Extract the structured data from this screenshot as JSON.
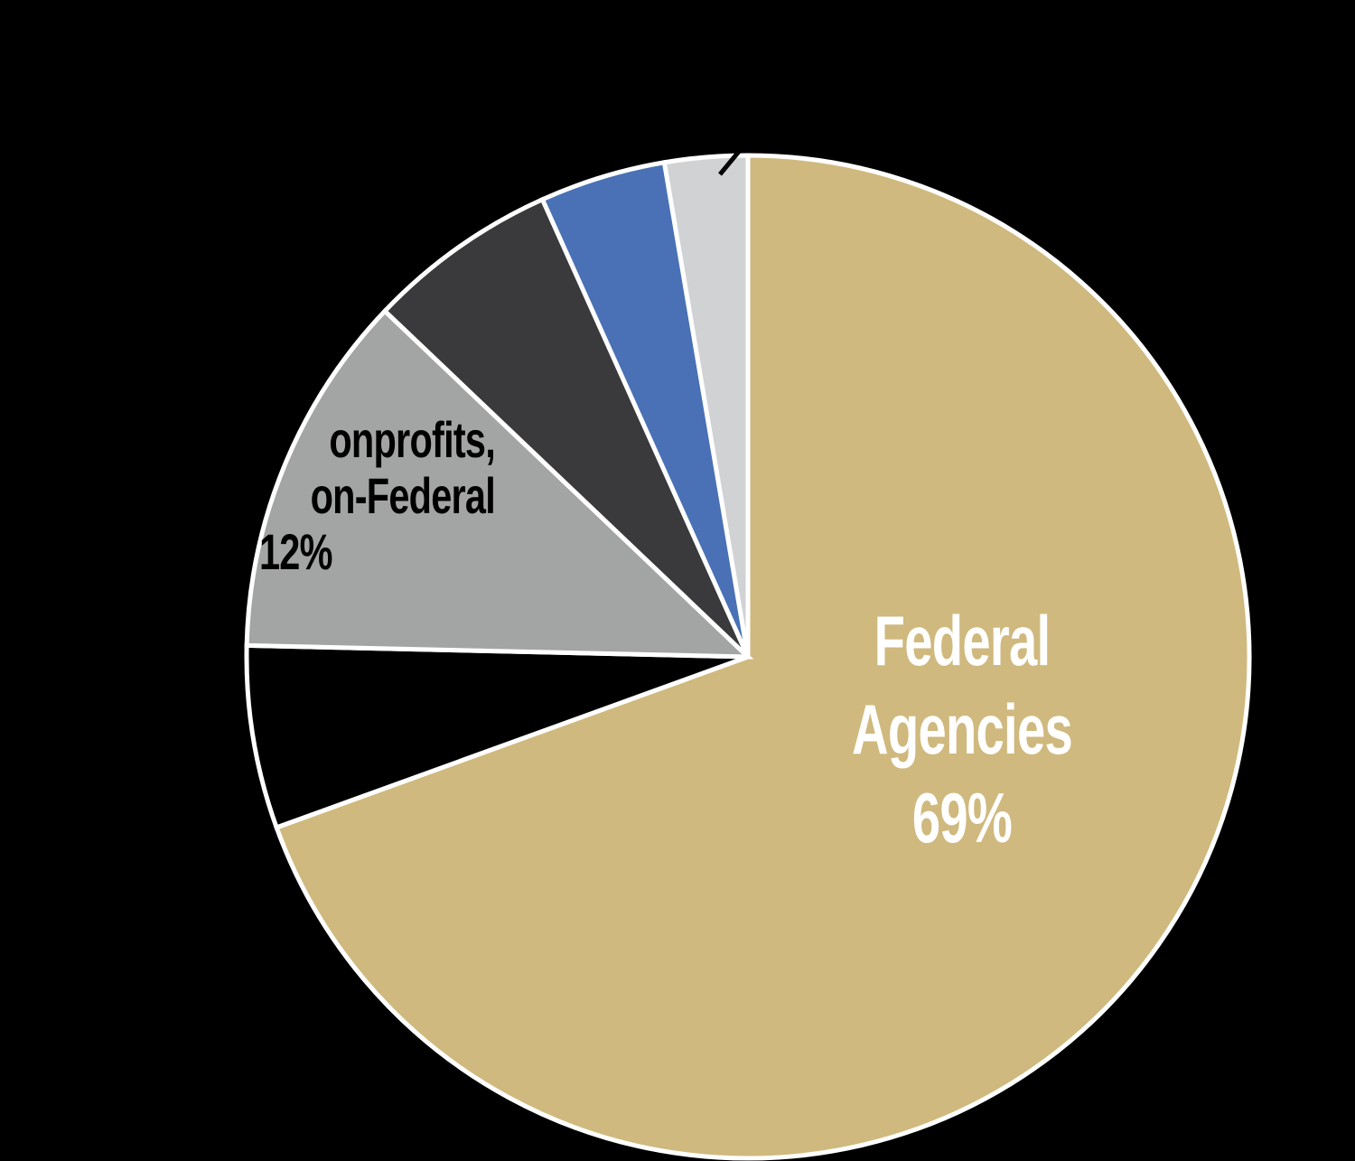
{
  "chart_data": {
    "type": "pie",
    "title": "",
    "start_angle_deg": 0,
    "direction": "clockwise",
    "slice_outline_color": "#ffffff",
    "background": "#000000",
    "slices": [
      {
        "key": "federal",
        "label": "Federal Agencies",
        "value": 69,
        "color": "#d0b97e",
        "label_lines": [
          "Federal",
          "Agencies",
          "69%"
        ],
        "label_color": "#ffffff"
      },
      {
        "key": "black",
        "label": "",
        "value": 6,
        "color": "#000000"
      },
      {
        "key": "nonprofits",
        "label": "Nonprofits, Non-Federal",
        "value": 12,
        "color": "#a3a5a4",
        "label_lines": [
          "onprofits,",
          "on-Federal",
          "12%"
        ],
        "label_color": "#000000"
      },
      {
        "key": "darkgray",
        "label": "",
        "value": 6,
        "color": "#3a3a3c"
      },
      {
        "key": "blue",
        "label": "",
        "value": 4,
        "color": "#4a71b5"
      },
      {
        "key": "lightgray",
        "label": "",
        "value": 3,
        "color": "#d1d2d4"
      }
    ],
    "slice_angles_deg": [
      [
        0,
        250.1
      ],
      [
        250.1,
        271.3
      ],
      [
        271.3,
        313.6
      ],
      [
        313.6,
        335.8
      ],
      [
        335.8,
        350.4
      ],
      [
        350.4,
        360
      ]
    ],
    "legend": null
  },
  "labels": {
    "federal": {
      "line1": "Federal",
      "line2": "Agencies",
      "line3": "69%"
    },
    "nonprofits": {
      "line1": "onprofits,",
      "line2": "on-Federal",
      "line3": "12%"
    }
  }
}
